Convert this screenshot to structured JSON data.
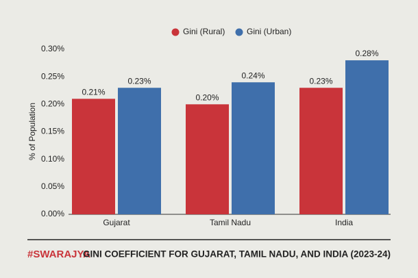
{
  "chart_data": {
    "type": "bar",
    "title": "GINI COEFFICIENT FOR GUJARAT, TAMIL NADU, AND INDIA (2023-24)",
    "brand": "#SWARAJYA",
    "y_label": "% of Population",
    "categories": [
      "Gujarat",
      "Tamil Nadu",
      "India"
    ],
    "series": [
      {
        "name": "Gini (Rural)",
        "color": "#c9343a",
        "values": [
          0.21,
          0.2,
          0.23
        ],
        "value_labels": [
          "0.21%",
          "0.20%",
          "0.23%"
        ]
      },
      {
        "name": "Gini (Urban)",
        "color": "#3f6fab",
        "values": [
          0.23,
          0.24,
          0.28
        ],
        "value_labels": [
          "0.23%",
          "0.24%",
          "0.28%"
        ]
      }
    ],
    "ylim": [
      0,
      0.3
    ],
    "yticks": [
      {
        "value": 0,
        "label": "0.00%"
      },
      {
        "value": 0.05,
        "label": "0.05%"
      },
      {
        "value": 0.1,
        "label": "0.10%"
      },
      {
        "value": 0.15,
        "label": "0.15%"
      },
      {
        "value": 0.2,
        "label": "0.20%"
      },
      {
        "value": 0.25,
        "label": "0.25%"
      },
      {
        "value": 0.3,
        "label": "0.30%"
      }
    ],
    "grid": false
  }
}
